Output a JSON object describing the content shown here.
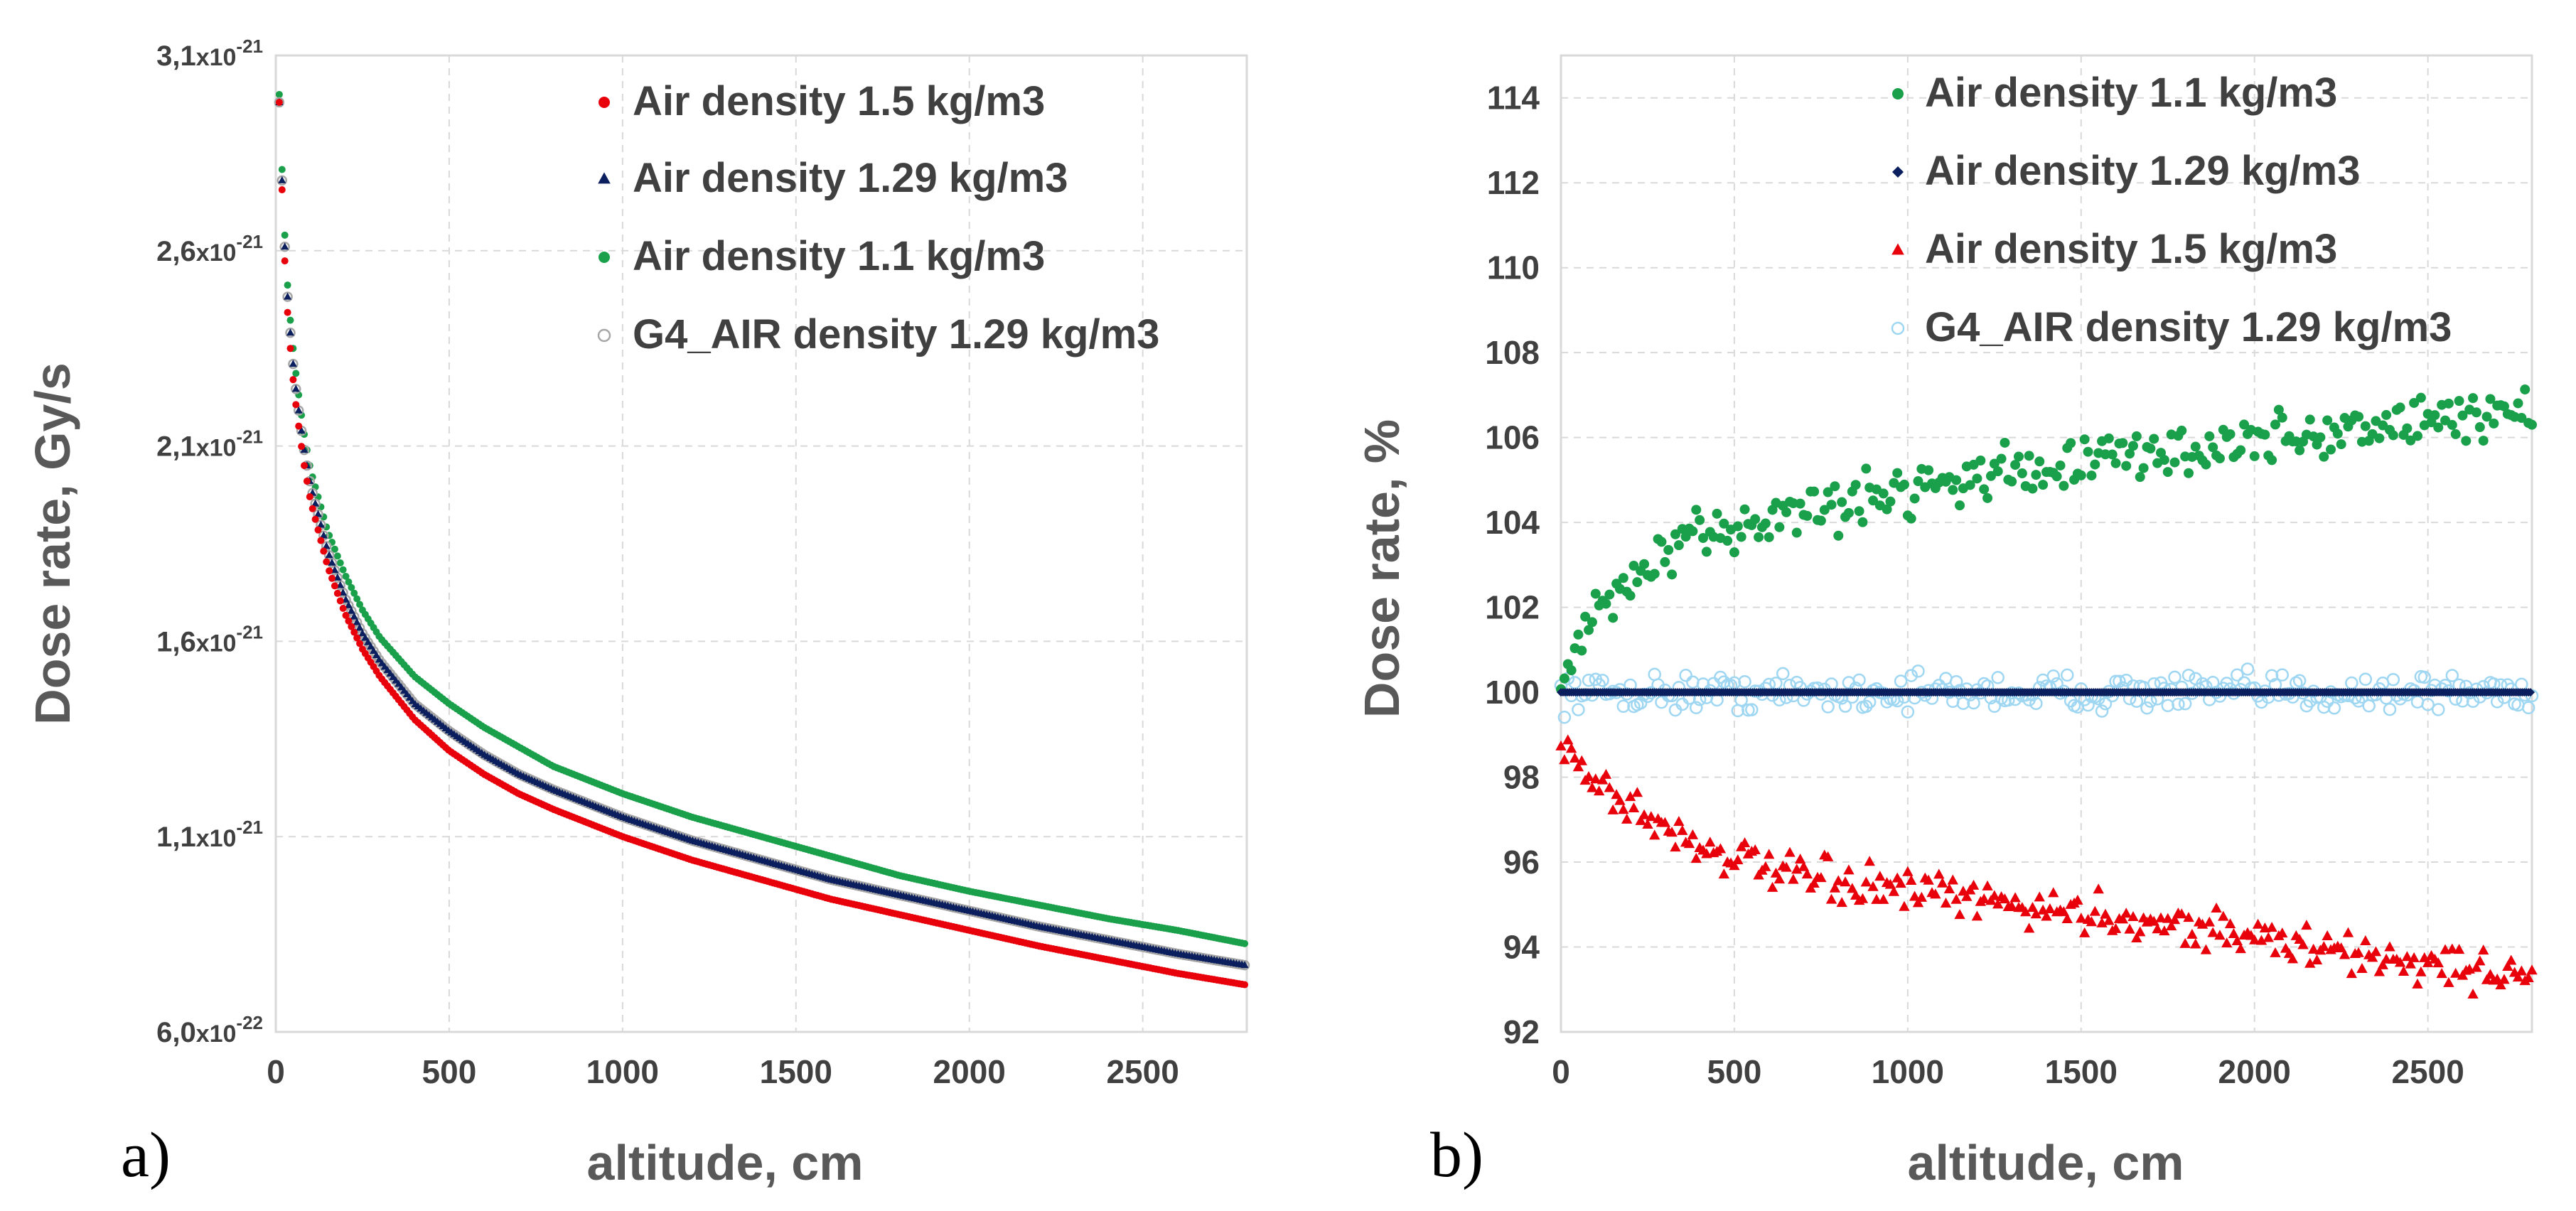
{
  "chart_data": [
    {
      "panel_label": "a)",
      "type": "scatter",
      "xlabel": "altitude, cm",
      "ylabel": "Dose rate, Gy/s",
      "xlim": [
        0,
        2800
      ],
      "ylim": [
        6e-22,
        3.1e-21
      ],
      "xticks": [
        "0",
        "500",
        "1000",
        "1500",
        "2000",
        "2500"
      ],
      "yticks": [
        {
          "mantissa": "6,0",
          "exp": "-22",
          "value": 6e-22
        },
        {
          "mantissa": "1,1",
          "exp": "-21",
          "value": 1.1e-21
        },
        {
          "mantissa": "1,6",
          "exp": "-21",
          "value": 1.6e-21
        },
        {
          "mantissa": "2,1",
          "exp": "-21",
          "value": 2.1e-21
        },
        {
          "mantissa": "2,6",
          "exp": "-21",
          "value": 2.6e-21
        },
        {
          "mantissa": "3,1",
          "exp": "-21",
          "value": 3.1e-21
        }
      ],
      "grid": true,
      "legend": "top-right",
      "series": [
        {
          "name": "Air density 1.5 kg/m3",
          "color": "#e8000b",
          "marker": "circle",
          "x": [
            10,
            20,
            30,
            40,
            50,
            60,
            80,
            100,
            150,
            200,
            250,
            300,
            400,
            500,
            600,
            700,
            800,
            1000,
            1200,
            1400,
            1600,
            1800,
            2000,
            2200,
            2400,
            2600,
            2800
          ],
          "y": [
            2.98e-21,
            2.7e-21,
            2.49e-21,
            2.37e-21,
            2.27e-21,
            2.19e-21,
            2.06e-21,
            1.96e-21,
            1.79e-21,
            1.67e-21,
            1.58e-21,
            1.51e-21,
            1.4e-21,
            1.32e-21,
            1.26e-21,
            1.21e-21,
            1.17e-21,
            1.1e-21,
            1.04e-21,
            9.9e-22,
            9.4e-22,
            9e-22,
            8.6e-22,
            8.2e-22,
            7.85e-22,
            7.5e-22,
            7.2e-22
          ]
        },
        {
          "name": "Air density 1.29 kg/m3",
          "color": "#0b1f5e",
          "marker": "triangle",
          "x": [
            10,
            20,
            30,
            40,
            50,
            60,
            80,
            100,
            150,
            200,
            250,
            300,
            400,
            500,
            600,
            700,
            800,
            1000,
            1200,
            1400,
            1600,
            1800,
            2000,
            2200,
            2400,
            2600,
            2800
          ],
          "y": [
            2.98e-21,
            2.73e-21,
            2.53e-21,
            2.41e-21,
            2.31e-21,
            2.23e-21,
            2.1e-21,
            2e-21,
            1.83e-21,
            1.71e-21,
            1.62e-21,
            1.55e-21,
            1.44e-21,
            1.37e-21,
            1.31e-21,
            1.26e-21,
            1.22e-21,
            1.15e-21,
            1.09e-21,
            1.04e-21,
            9.9e-22,
            9.5e-22,
            9.1e-22,
            8.7e-22,
            8.35e-22,
            8e-22,
            7.7e-22
          ]
        },
        {
          "name": "Air density 1.1 kg/m3",
          "color": "#1aa04a",
          "marker": "circle",
          "x": [
            10,
            20,
            30,
            40,
            50,
            60,
            80,
            100,
            150,
            200,
            250,
            300,
            400,
            500,
            600,
            700,
            800,
            1000,
            1200,
            1400,
            1600,
            1800,
            2000,
            2200,
            2400,
            2600,
            2800
          ],
          "y": [
            3e-21,
            2.76e-21,
            2.56e-21,
            2.44e-21,
            2.35e-21,
            2.27e-21,
            2.14e-21,
            2.04e-21,
            1.88e-21,
            1.77e-21,
            1.68e-21,
            1.61e-21,
            1.51e-21,
            1.44e-21,
            1.38e-21,
            1.33e-21,
            1.28e-21,
            1.21e-21,
            1.15e-21,
            1.1e-21,
            1.05e-21,
            1e-21,
            9.6e-22,
            9.25e-22,
            8.9e-22,
            8.6e-22,
            8.25e-22
          ]
        },
        {
          "name": "G4_AIR density 1.29 kg/m3",
          "color": "#a6a6a6",
          "marker": "open-circle",
          "x": [
            10,
            20,
            30,
            40,
            50,
            60,
            80,
            100,
            150,
            200,
            250,
            300,
            400,
            500,
            600,
            700,
            800,
            1000,
            1200,
            1400,
            1600,
            1800,
            2000,
            2200,
            2400,
            2600,
            2800
          ],
          "y": [
            2.98e-21,
            2.73e-21,
            2.53e-21,
            2.41e-21,
            2.31e-21,
            2.23e-21,
            2.1e-21,
            2e-21,
            1.83e-21,
            1.71e-21,
            1.62e-21,
            1.55e-21,
            1.44e-21,
            1.37e-21,
            1.31e-21,
            1.26e-21,
            1.22e-21,
            1.15e-21,
            1.09e-21,
            1.04e-21,
            9.9e-22,
            9.5e-22,
            9.1e-22,
            8.7e-22,
            8.35e-22,
            8e-22,
            7.7e-22
          ]
        }
      ]
    },
    {
      "panel_label": "b)",
      "type": "scatter",
      "xlabel": "altitude, cm",
      "ylabel": "Dose rate, %",
      "xlim": [
        0,
        2800
      ],
      "ylim": [
        92,
        115
      ],
      "xticks": [
        "0",
        "500",
        "1000",
        "1500",
        "2000",
        "2500"
      ],
      "yticks": [
        "92",
        "94",
        "96",
        "98",
        "100",
        "102",
        "104",
        "106",
        "108",
        "110",
        "112",
        "114"
      ],
      "grid": true,
      "legend": "top-right",
      "series": [
        {
          "name": "Air density 1.1 kg/m3",
          "color": "#1aa04a",
          "marker": "circle",
          "x": [
            0,
            100,
            200,
            300,
            400,
            500,
            600,
            700,
            800,
            900,
            1000,
            1100,
            1200,
            1300,
            1400,
            1500,
            1600,
            1700,
            1800,
            1900,
            2000,
            2100,
            2200,
            2300,
            2400,
            2500,
            2600,
            2700,
            2800
          ],
          "y": [
            100.3,
            101.8,
            102.6,
            103.2,
            103.6,
            103.9,
            104.1,
            104.3,
            104.4,
            104.6,
            104.8,
            105.0,
            105.1,
            105.2,
            105.3,
            105.4,
            105.5,
            105.6,
            105.7,
            105.8,
            105.9,
            106.0,
            106.1,
            106.2,
            106.3,
            106.4,
            106.5,
            106.6,
            106.7
          ],
          "noise": 0.5
        },
        {
          "name": "Air density 1.29 kg/m3",
          "color": "#0b1f5e",
          "marker": "diamond",
          "x": [
            0,
            2800
          ],
          "y": [
            100,
            100
          ],
          "noise": 0.0
        },
        {
          "name": "Air density 1.5 kg/m3",
          "color": "#e8000b",
          "marker": "triangle",
          "x": [
            0,
            100,
            200,
            300,
            400,
            500,
            600,
            700,
            800,
            900,
            1000,
            1100,
            1200,
            1300,
            1400,
            1500,
            1600,
            1700,
            1800,
            1900,
            2000,
            2100,
            2200,
            2300,
            2400,
            2500,
            2600,
            2700,
            2800
          ],
          "y": [
            98.8,
            97.9,
            97.3,
            96.8,
            96.4,
            96.1,
            95.8,
            95.6,
            95.5,
            95.4,
            95.3,
            95.2,
            95.1,
            95.0,
            94.9,
            94.8,
            94.7,
            94.6,
            94.5,
            94.4,
            94.2,
            94.1,
            93.9,
            93.8,
            93.7,
            93.6,
            93.5,
            93.4,
            93.4
          ],
          "noise": 0.4
        },
        {
          "name": "G4_AIR density 1.29 kg/m3",
          "color": "#9fd7f2",
          "marker": "open-circle",
          "x": [
            0,
            2800
          ],
          "y": [
            100,
            100
          ],
          "noise": 0.35
        }
      ]
    }
  ]
}
